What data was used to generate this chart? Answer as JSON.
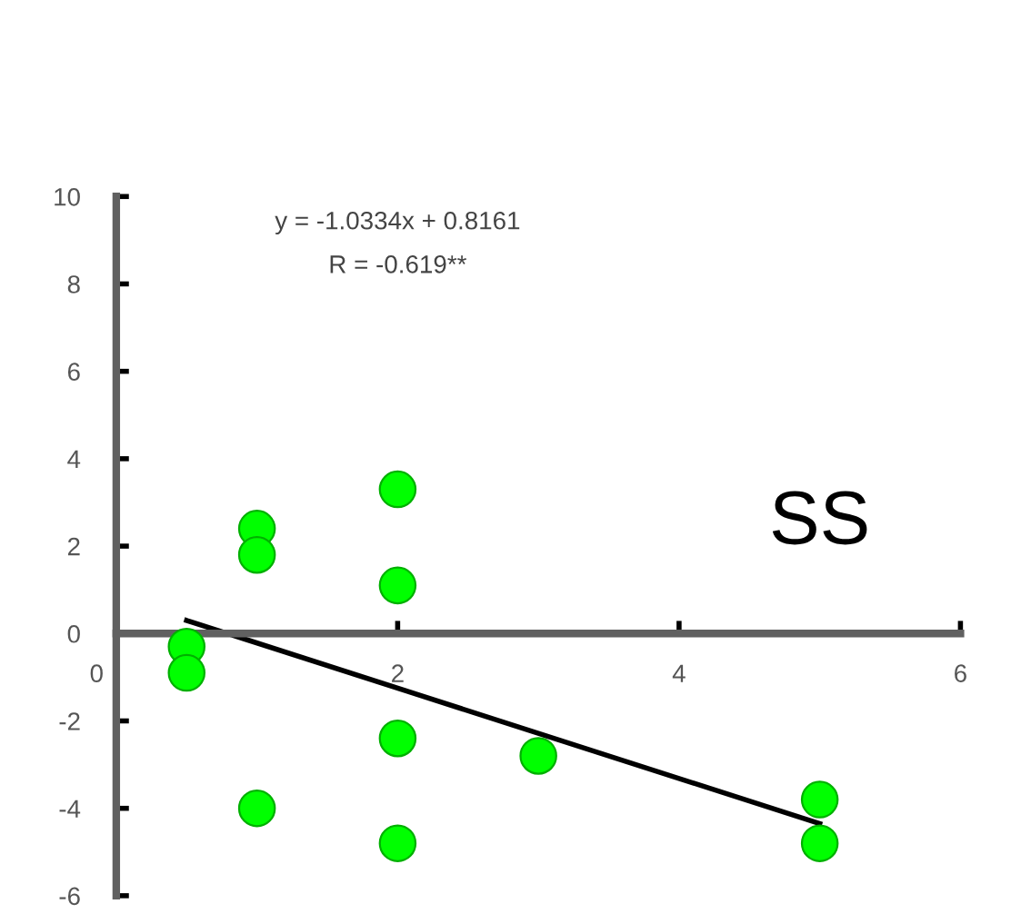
{
  "chart_data": {
    "type": "scatter",
    "annotations": [
      "y = -1.0334x + 0.8161",
      "R = -0.619**",
      "SS"
    ],
    "xlim": [
      0,
      6
    ],
    "ylim": [
      -6,
      10
    ],
    "xticks": [
      0,
      2,
      4,
      6
    ],
    "yticks": [
      -6,
      -4,
      -2,
      0,
      2,
      4,
      6,
      8,
      10
    ],
    "grid": false,
    "series": [
      {
        "marker": "circle",
        "color": "#00ff00",
        "x": [
          0.5,
          0.5,
          1,
          1,
          1,
          2,
          2,
          2,
          2,
          3,
          5,
          5
        ],
        "values": [
          -0.3,
          -0.9,
          2.4,
          1.8,
          -4.0,
          3.3,
          1.1,
          -2.4,
          -4.8,
          -2.8,
          -3.8,
          -4.8
        ]
      },
      {
        "type": "line",
        "marker": "none",
        "color": "#000000",
        "x": [
          0.5,
          5
        ],
        "values": [
          0.3,
          -4.35
        ]
      }
    ]
  }
}
